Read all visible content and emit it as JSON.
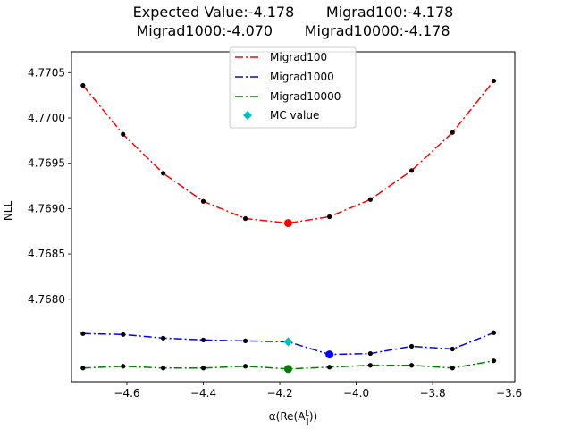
{
  "chart_data": {
    "type": "line",
    "title_line1": "Expected Value:-4.178       Migrad100:-4.178",
    "title_line2": "Migrad1000:-4.070       Migrad10000:-4.178",
    "xlabel": "α(Re(A",
    "xlabel_sup": "L",
    "xlabel_sub": "∥",
    "xlabel_tail": "))",
    "ylabel": "NLL",
    "xlim": [
      -4.745,
      -3.585
    ],
    "ylim": [
      4.76709,
      4.77073
    ],
    "xticks": [
      -4.6,
      -4.4,
      -4.2,
      -4.0,
      -3.8,
      -3.6
    ],
    "xtick_labels": [
      "−4.6",
      "−4.4",
      "−4.2",
      "−4.0",
      "−3.8",
      "−3.6"
    ],
    "yticks": [
      4.768,
      4.7685,
      4.769,
      4.7695,
      4.77,
      4.7705
    ],
    "ytick_labels": [
      "4.7680",
      "4.7685",
      "4.7690",
      "4.7695",
      "4.7700",
      "4.7705"
    ],
    "x": [
      -4.715,
      -4.61,
      -4.505,
      -4.4,
      -4.29,
      -4.178,
      -4.07,
      -3.963,
      -3.855,
      -3.748,
      -3.64
    ],
    "series": [
      {
        "name": "Migrad100",
        "color": "#ff0000",
        "y": [
          4.77036,
          4.76982,
          4.76939,
          4.76908,
          4.76889,
          4.76884,
          4.76891,
          4.7691,
          4.76942,
          4.76984,
          4.77041
        ],
        "min_index": 5
      },
      {
        "name": "Migrad1000",
        "color": "#0000ff",
        "y": [
          4.76762,
          4.76761,
          4.76757,
          4.76755,
          4.76754,
          4.76753,
          4.76739,
          4.7674,
          4.76748,
          4.76745,
          4.76763
        ],
        "min_index": 6
      },
      {
        "name": "Migrad10000",
        "color": "#008000",
        "y": [
          4.76724,
          4.76726,
          4.76724,
          4.76724,
          4.76726,
          4.76723,
          4.76725,
          4.76727,
          4.76727,
          4.76724,
          4.76732
        ],
        "min_index": 5
      }
    ],
    "mc_value": {
      "name": "MC value",
      "color": "#00bfbf",
      "x": -4.178,
      "y": 4.76753
    },
    "legend_position": "upper center",
    "grid": false
  }
}
